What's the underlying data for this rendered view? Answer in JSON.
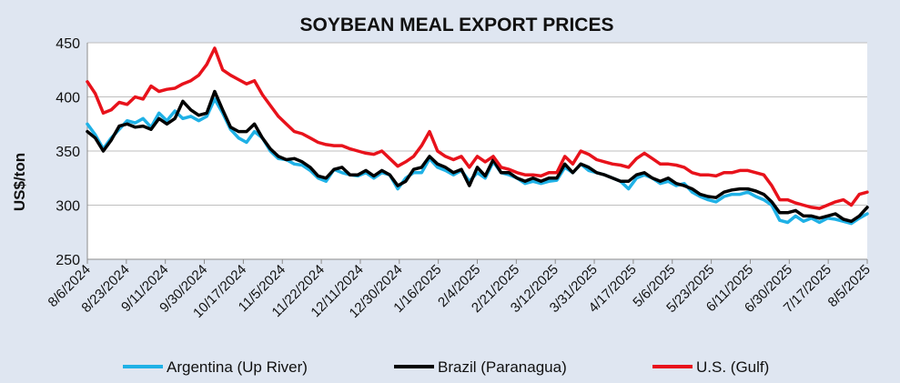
{
  "chart_data": {
    "type": "line",
    "title": "SOYBEAN MEAL EXPORT PRICES",
    "xlabel": "",
    "ylabel": "US$/ton",
    "ylim": [
      250,
      450
    ],
    "yticks": [
      250,
      300,
      350,
      400,
      450
    ],
    "grid": "horizontal",
    "legend_position": "bottom",
    "x_ticks": [
      "8/6/2024",
      "8/23/2024",
      "9/11/2024",
      "9/30/2024",
      "10/17/2024",
      "11/5/2024",
      "11/22/2024",
      "12/11/2024",
      "12/30/2024",
      "1/16/2025",
      "2/4/2025",
      "2/21/2025",
      "3/12/2025",
      "3/31/2025",
      "4/17/2025",
      "5/6/2025",
      "5/23/2025",
      "6/11/2025",
      "6/30/2025",
      "7/17/2025",
      "8/5/2025"
    ],
    "series": [
      {
        "name": "Argentina (Up River)",
        "color": "#1fb1e6",
        "values": [
          [
            0,
            375
          ],
          [
            1,
            365
          ],
          [
            2,
            352
          ],
          [
            3,
            362
          ],
          [
            4,
            370
          ],
          [
            5,
            378
          ],
          [
            6,
            376
          ],
          [
            7,
            380
          ],
          [
            8,
            372
          ],
          [
            9,
            385
          ],
          [
            10,
            378
          ],
          [
            11,
            387
          ],
          [
            12,
            380
          ],
          [
            13,
            382
          ],
          [
            14,
            378
          ],
          [
            15,
            382
          ],
          [
            16,
            398
          ],
          [
            17,
            385
          ],
          [
            18,
            370
          ],
          [
            19,
            362
          ],
          [
            20,
            358
          ],
          [
            21,
            368
          ],
          [
            22,
            362
          ],
          [
            23,
            350
          ],
          [
            24,
            343
          ],
          [
            25,
            342
          ],
          [
            26,
            338
          ],
          [
            27,
            337
          ],
          [
            28,
            332
          ],
          [
            29,
            325
          ],
          [
            30,
            322
          ],
          [
            31,
            333
          ],
          [
            32,
            330
          ],
          [
            33,
            328
          ],
          [
            34,
            327
          ],
          [
            35,
            330
          ],
          [
            36,
            325
          ],
          [
            37,
            330
          ],
          [
            38,
            328
          ],
          [
            39,
            315
          ],
          [
            40,
            325
          ],
          [
            41,
            330
          ],
          [
            42,
            330
          ],
          [
            43,
            343
          ],
          [
            44,
            335
          ],
          [
            45,
            332
          ],
          [
            46,
            328
          ],
          [
            47,
            332
          ],
          [
            48,
            322
          ],
          [
            49,
            330
          ],
          [
            50,
            325
          ],
          [
            51,
            340
          ],
          [
            52,
            330
          ],
          [
            53,
            328
          ],
          [
            54,
            325
          ],
          [
            55,
            320
          ],
          [
            56,
            322
          ],
          [
            57,
            320
          ],
          [
            58,
            322
          ],
          [
            59,
            323
          ],
          [
            60,
            335
          ],
          [
            61,
            330
          ],
          [
            62,
            338
          ],
          [
            63,
            332
          ],
          [
            64,
            330
          ],
          [
            65,
            328
          ],
          [
            66,
            325
          ],
          [
            67,
            322
          ],
          [
            68,
            315
          ],
          [
            69,
            325
          ],
          [
            70,
            328
          ],
          [
            71,
            325
          ],
          [
            72,
            320
          ],
          [
            73,
            322
          ],
          [
            74,
            318
          ],
          [
            75,
            320
          ],
          [
            76,
            312
          ],
          [
            77,
            308
          ],
          [
            78,
            305
          ],
          [
            79,
            303
          ],
          [
            80,
            308
          ],
          [
            81,
            310
          ],
          [
            82,
            310
          ],
          [
            83,
            312
          ],
          [
            84,
            308
          ],
          [
            85,
            305
          ],
          [
            86,
            300
          ],
          [
            87,
            286
          ],
          [
            88,
            284
          ],
          [
            89,
            290
          ],
          [
            90,
            285
          ],
          [
            91,
            288
          ],
          [
            92,
            284
          ],
          [
            93,
            288
          ],
          [
            94,
            287
          ],
          [
            95,
            285
          ],
          [
            96,
            283
          ],
          [
            97,
            288
          ],
          [
            98,
            292
          ]
        ]
      },
      {
        "name": "Brazil (Paranagua)",
        "color": "#000000",
        "values": [
          [
            0,
            368
          ],
          [
            1,
            362
          ],
          [
            2,
            350
          ],
          [
            3,
            360
          ],
          [
            4,
            373
          ],
          [
            5,
            375
          ],
          [
            6,
            372
          ],
          [
            7,
            373
          ],
          [
            8,
            370
          ],
          [
            9,
            380
          ],
          [
            10,
            375
          ],
          [
            11,
            380
          ],
          [
            12,
            396
          ],
          [
            13,
            388
          ],
          [
            14,
            383
          ],
          [
            15,
            385
          ],
          [
            16,
            405
          ],
          [
            17,
            388
          ],
          [
            18,
            372
          ],
          [
            19,
            368
          ],
          [
            20,
            368
          ],
          [
            21,
            375
          ],
          [
            22,
            362
          ],
          [
            23,
            352
          ],
          [
            24,
            345
          ],
          [
            25,
            342
          ],
          [
            26,
            343
          ],
          [
            27,
            340
          ],
          [
            28,
            335
          ],
          [
            29,
            327
          ],
          [
            30,
            325
          ],
          [
            31,
            333
          ],
          [
            32,
            335
          ],
          [
            33,
            328
          ],
          [
            34,
            328
          ],
          [
            35,
            332
          ],
          [
            36,
            327
          ],
          [
            37,
            332
          ],
          [
            38,
            328
          ],
          [
            39,
            318
          ],
          [
            40,
            322
          ],
          [
            41,
            333
          ],
          [
            42,
            335
          ],
          [
            43,
            345
          ],
          [
            44,
            338
          ],
          [
            45,
            335
          ],
          [
            46,
            330
          ],
          [
            47,
            333
          ],
          [
            48,
            318
          ],
          [
            49,
            335
          ],
          [
            50,
            327
          ],
          [
            51,
            342
          ],
          [
            52,
            330
          ],
          [
            53,
            330
          ],
          [
            54,
            325
          ],
          [
            55,
            322
          ],
          [
            56,
            325
          ],
          [
            57,
            322
          ],
          [
            58,
            325
          ],
          [
            59,
            325
          ],
          [
            60,
            338
          ],
          [
            61,
            330
          ],
          [
            62,
            338
          ],
          [
            63,
            335
          ],
          [
            64,
            330
          ],
          [
            65,
            328
          ],
          [
            66,
            325
          ],
          [
            67,
            322
          ],
          [
            68,
            322
          ],
          [
            69,
            328
          ],
          [
            70,
            330
          ],
          [
            71,
            325
          ],
          [
            72,
            322
          ],
          [
            73,
            325
          ],
          [
            74,
            320
          ],
          [
            75,
            318
          ],
          [
            76,
            315
          ],
          [
            77,
            310
          ],
          [
            78,
            308
          ],
          [
            79,
            307
          ],
          [
            80,
            312
          ],
          [
            81,
            314
          ],
          [
            82,
            315
          ],
          [
            83,
            315
          ],
          [
            84,
            313
          ],
          [
            85,
            310
          ],
          [
            86,
            303
          ],
          [
            87,
            293
          ],
          [
            88,
            293
          ],
          [
            89,
            295
          ],
          [
            90,
            290
          ],
          [
            91,
            290
          ],
          [
            92,
            288
          ],
          [
            93,
            290
          ],
          [
            94,
            292
          ],
          [
            95,
            287
          ],
          [
            96,
            285
          ],
          [
            97,
            290
          ],
          [
            98,
            298
          ]
        ]
      },
      {
        "name": "U.S. (Gulf)",
        "color": "#e8121b",
        "values": [
          [
            0,
            414
          ],
          [
            1,
            403
          ],
          [
            2,
            385
          ],
          [
            3,
            388
          ],
          [
            4,
            395
          ],
          [
            5,
            393
          ],
          [
            6,
            400
          ],
          [
            7,
            398
          ],
          [
            8,
            410
          ],
          [
            9,
            405
          ],
          [
            10,
            407
          ],
          [
            11,
            408
          ],
          [
            12,
            412
          ],
          [
            13,
            415
          ],
          [
            14,
            420
          ],
          [
            15,
            430
          ],
          [
            16,
            445
          ],
          [
            17,
            425
          ],
          [
            18,
            420
          ],
          [
            19,
            416
          ],
          [
            20,
            412
          ],
          [
            21,
            415
          ],
          [
            22,
            402
          ],
          [
            23,
            392
          ],
          [
            24,
            382
          ],
          [
            25,
            375
          ],
          [
            26,
            368
          ],
          [
            27,
            366
          ],
          [
            28,
            362
          ],
          [
            29,
            358
          ],
          [
            30,
            356
          ],
          [
            31,
            355
          ],
          [
            32,
            355
          ],
          [
            33,
            352
          ],
          [
            34,
            350
          ],
          [
            35,
            348
          ],
          [
            36,
            347
          ],
          [
            37,
            350
          ],
          [
            38,
            343
          ],
          [
            39,
            336
          ],
          [
            40,
            340
          ],
          [
            41,
            345
          ],
          [
            42,
            355
          ],
          [
            43,
            368
          ],
          [
            44,
            350
          ],
          [
            45,
            345
          ],
          [
            46,
            342
          ],
          [
            47,
            345
          ],
          [
            48,
            335
          ],
          [
            49,
            345
          ],
          [
            50,
            340
          ],
          [
            51,
            345
          ],
          [
            52,
            335
          ],
          [
            53,
            333
          ],
          [
            54,
            330
          ],
          [
            55,
            328
          ],
          [
            56,
            328
          ],
          [
            57,
            327
          ],
          [
            58,
            330
          ],
          [
            59,
            330
          ],
          [
            60,
            345
          ],
          [
            61,
            338
          ],
          [
            62,
            350
          ],
          [
            63,
            347
          ],
          [
            64,
            342
          ],
          [
            65,
            340
          ],
          [
            66,
            338
          ],
          [
            67,
            337
          ],
          [
            68,
            335
          ],
          [
            69,
            343
          ],
          [
            70,
            348
          ],
          [
            71,
            343
          ],
          [
            72,
            338
          ],
          [
            73,
            338
          ],
          [
            74,
            337
          ],
          [
            75,
            335
          ],
          [
            76,
            330
          ],
          [
            77,
            328
          ],
          [
            78,
            328
          ],
          [
            79,
            327
          ],
          [
            80,
            330
          ],
          [
            81,
            330
          ],
          [
            82,
            332
          ],
          [
            83,
            332
          ],
          [
            84,
            330
          ],
          [
            85,
            328
          ],
          [
            86,
            318
          ],
          [
            87,
            305
          ],
          [
            88,
            305
          ],
          [
            89,
            302
          ],
          [
            90,
            300
          ],
          [
            91,
            298
          ],
          [
            92,
            297
          ],
          [
            93,
            300
          ],
          [
            94,
            303
          ],
          [
            95,
            305
          ],
          [
            96,
            300
          ],
          [
            97,
            310
          ],
          [
            98,
            312
          ]
        ]
      }
    ]
  }
}
